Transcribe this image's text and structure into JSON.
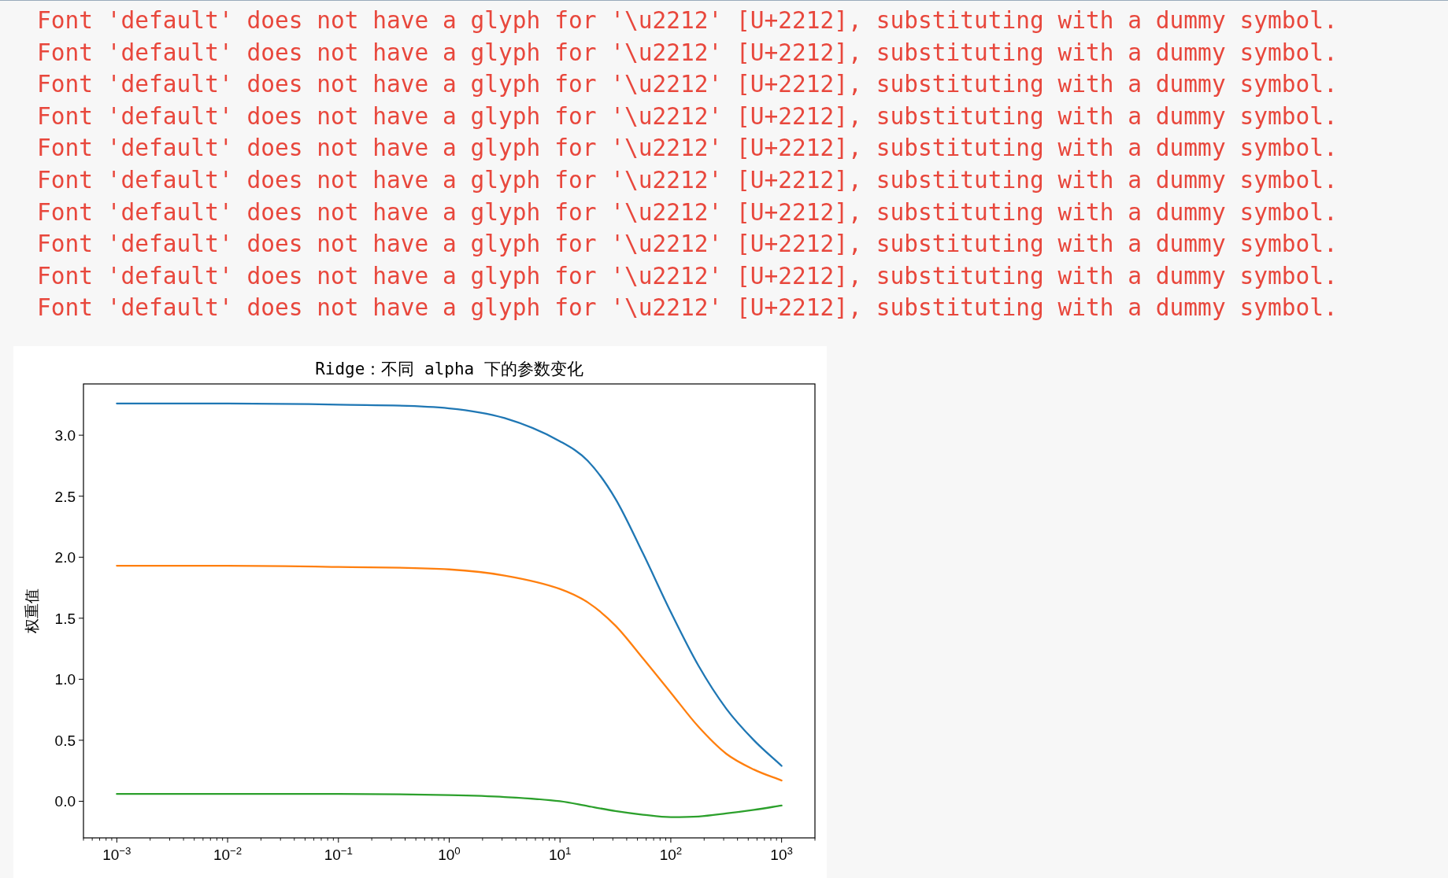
{
  "chart_data": {
    "type": "line",
    "title": "Ridge：不同 alpha 下的参数变化",
    "ylabel": "权重值",
    "annotations": [
      "Font 'default' does not have a glyph for '\\u2212' [U+2212], substituting with a dummy symbol.",
      "Font 'default' does not have a glyph for '\\u2212' [U+2212], substituting with a dummy symbol.",
      "Font 'default' does not have a glyph for '\\u2212' [U+2212], substituting with a dummy symbol.",
      "Font 'default' does not have a glyph for '\\u2212' [U+2212], substituting with a dummy symbol.",
      "Font 'default' does not have a glyph for '\\u2212' [U+2212], substituting with a dummy symbol.",
      "Font 'default' does not have a glyph for '\\u2212' [U+2212], substituting with a dummy symbol.",
      "Font 'default' does not have a glyph for '\\u2212' [U+2212], substituting with a dummy symbol.",
      "Font 'default' does not have a glyph for '\\u2212' [U+2212], substituting with a dummy symbol.",
      "Font 'default' does not have a glyph for '\\u2212' [U+2212], substituting with a dummy symbol.",
      "Font 'default' does not have a glyph for '\\u2212' [U+2212], substituting with a dummy symbol."
    ],
    "log": "x",
    "xlim": [
      0.0005,
      2000
    ],
    "ylim": [
      -0.3,
      3.42
    ],
    "xticks": [
      {
        "value": 0.001,
        "label": "10$^{−3}$"
      },
      {
        "value": 0.01,
        "label": "10$^{−2}$"
      },
      {
        "value": 0.1,
        "label": "10$^{−1}$"
      },
      {
        "value": 1,
        "label": "10$^{0}$"
      },
      {
        "value": 10,
        "label": "10$^{1}$"
      },
      {
        "value": 100,
        "label": "10$^{2}$"
      },
      {
        "value": 1000,
        "label": "10$^{3}$"
      }
    ],
    "yticks": [
      {
        "value": 0,
        "label": "0.0"
      },
      {
        "value": 0.5,
        "label": "0.5"
      },
      {
        "value": 1,
        "label": "1.0"
      },
      {
        "value": 1.5,
        "label": "1.5"
      },
      {
        "value": 2,
        "label": "2.0"
      },
      {
        "value": 2.5,
        "label": "2.5"
      },
      {
        "value": 3,
        "label": "3.0"
      }
    ],
    "grid": false,
    "x": [
      0.001,
      0.01,
      0.1,
      1,
      3.16,
      10,
      17.8,
      31.6,
      56.2,
      100,
      178,
      316,
      562,
      1000
    ],
    "series": [
      {
        "color": "#1f77b4",
        "values": [
          3.26,
          3.26,
          3.25,
          3.22,
          3.14,
          2.95,
          2.79,
          2.48,
          2.03,
          1.55,
          1.11,
          0.76,
          0.5,
          0.29
        ]
      },
      {
        "color": "#ff7f0e",
        "values": [
          1.93,
          1.93,
          1.92,
          1.9,
          1.85,
          1.74,
          1.63,
          1.44,
          1.17,
          0.89,
          0.61,
          0.39,
          0.26,
          0.17
        ]
      },
      {
        "color": "#2ca02c",
        "values": [
          0.06,
          0.06,
          0.06,
          0.05,
          0.035,
          0.0,
          -0.04,
          -0.08,
          -0.11,
          -0.13,
          -0.125,
          -0.1,
          -0.07,
          -0.035
        ]
      }
    ]
  }
}
